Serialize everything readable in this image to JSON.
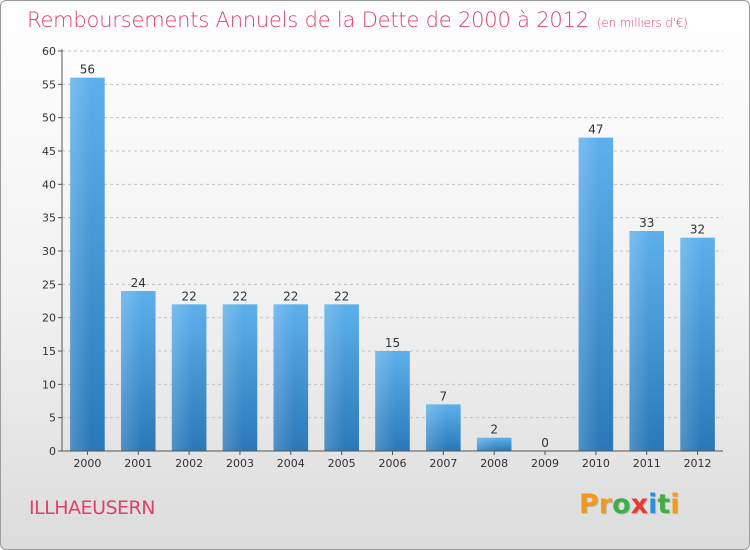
{
  "header": {
    "title": "Remboursements Annuels de la Dette de 2000 à 2012",
    "unit": "(en milliers d'€)"
  },
  "footer": {
    "commune": "ILLHAEUSERN",
    "logo_letters": [
      {
        "char": "P",
        "color": "#f39a1c"
      },
      {
        "char": "r",
        "color": "#f39a1c"
      },
      {
        "char": "o",
        "color": "#3fae49"
      },
      {
        "char": "x",
        "color": "#e63c2f"
      },
      {
        "char": "i",
        "color": "#2f8fd8"
      },
      {
        "char": "t",
        "color": "#3fae49"
      },
      {
        "char": "i",
        "color": "#f39a1c"
      }
    ]
  },
  "colors": {
    "title": "#e0406a",
    "bar_top": "#5eb0ec",
    "bar_bottom": "#2a78b8",
    "grid": "#c4c4c4",
    "axis": "#555555"
  },
  "chart_data": {
    "type": "bar",
    "title": "Remboursements Annuels de la Dette de 2000 à 2012",
    "subtitle": "(en milliers d'€)",
    "categories": [
      "2000",
      "2001",
      "2002",
      "2003",
      "2004",
      "2005",
      "2006",
      "2007",
      "2008",
      "2009",
      "2010",
      "2011",
      "2012"
    ],
    "values": [
      56,
      24,
      22,
      22,
      22,
      22,
      15,
      7,
      2,
      0,
      47,
      33,
      32
    ],
    "ylim": [
      0,
      60
    ],
    "yticks": [
      0,
      5,
      10,
      15,
      20,
      25,
      30,
      35,
      40,
      45,
      50,
      55,
      60
    ],
    "grid": "horizontal-dashed",
    "legend": "none"
  }
}
